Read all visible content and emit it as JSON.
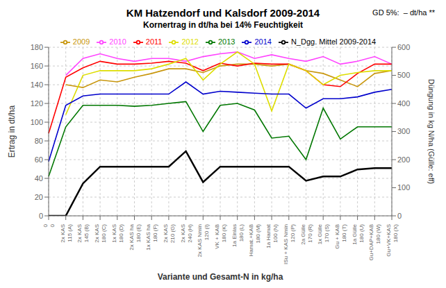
{
  "chart_data": {
    "type": "line",
    "title": "KM Hatzendorf und Kalsdorf 2009-2014",
    "subtitle": "Kornertrag in dt/ha bei 14% Feuchtigkeit",
    "annotations": [
      "GD 5%:  – dt/ha **"
    ],
    "x_label": "Variante und Gesamt-N in kg/ha",
    "y_label": "Ertrag in dt/ha",
    "y2_label": "Düngung in kg N/ha (Gülle: eff)",
    "categories": [
      "0\n0",
      "2x KAS\n115 (A)",
      "2x KAS\n145 (B)",
      "2x KAS\n180 (C)",
      "1x KAS\n180 (D)",
      "2x KAS ha\n180 (E)",
      "1x KAS ha\n180 (F)",
      "2x KAS\n210 (G)",
      "2x KAS\n240 (H)",
      "2x KAS Nmin\n120 (I)",
      "VK + KAB\n180 (K)",
      "1a Einlas\n180 (L)",
      "Hamat.+KAB\n180 (M)",
      "1a Hamat\n100 (N)",
      "ISu + KAS Nmin\n120 (P)",
      "2a Gülle\n170 (R)",
      "1x Gülle\n170 (S)",
      "Gu + KAB\n180 (T)",
      "1a Gülle\n180 (U)",
      "Gu+DAP+KAB\n180 (W)",
      "Gu+VK+KAS\n180 (X)"
    ],
    "ylim": [
      0,
      180
    ],
    "yticks": [
      0,
      20,
      40,
      60,
      80,
      100,
      120,
      140,
      160,
      180
    ],
    "y2lim": [
      0,
      600
    ],
    "y2ticks": [
      0,
      100,
      200,
      300,
      400,
      500,
      600
    ],
    "grid": true,
    "legend": "top",
    "series": [
      {
        "name": "2009",
        "color": "#c8960c",
        "values": [
          null,
          140,
          137,
          145,
          143,
          148,
          152,
          157,
          157,
          153,
          160,
          162,
          162,
          160,
          162,
          155,
          152,
          145,
          138,
          152,
          155
        ]
      },
      {
        "name": "2010",
        "color": "#ff44ff",
        "values": [
          null,
          150,
          168,
          173,
          168,
          165,
          168,
          168,
          165,
          170,
          173,
          175,
          168,
          172,
          168,
          165,
          170,
          162,
          165,
          170,
          162
        ]
      },
      {
        "name": "2011",
        "color": "#ff0000",
        "values": [
          88,
          148,
          158,
          165,
          162,
          162,
          163,
          165,
          163,
          155,
          163,
          160,
          163,
          162,
          162,
          155,
          140,
          138,
          152,
          162,
          162
        ]
      },
      {
        "name": "2012",
        "color": "#dddd00",
        "values": [
          null,
          108,
          150,
          155,
          155,
          155,
          157,
          162,
          168,
          145,
          162,
          175,
          162,
          112,
          162,
          155,
          140,
          150,
          153,
          155,
          155
        ]
      },
      {
        "name": "2013",
        "color": "#007700",
        "values": [
          42,
          95,
          118,
          118,
          118,
          117,
          118,
          120,
          122,
          90,
          118,
          120,
          113,
          83,
          85,
          60,
          115,
          82,
          95,
          95,
          95
        ]
      },
      {
        "name": "2014",
        "color": "#0000cc",
        "values": [
          58,
          118,
          128,
          130,
          130,
          130,
          130,
          130,
          143,
          130,
          133,
          132,
          131,
          130,
          130,
          115,
          125,
          125,
          127,
          132,
          135
        ]
      },
      {
        "name": "N_Dgg. Mittel 2009-2014",
        "color": "#000000",
        "axis": "y2",
        "values": [
          0,
          0,
          115,
          175,
          175,
          175,
          175,
          175,
          230,
          120,
          175,
          175,
          175,
          175,
          175,
          125,
          140,
          140,
          165,
          170,
          170
        ]
      }
    ]
  }
}
